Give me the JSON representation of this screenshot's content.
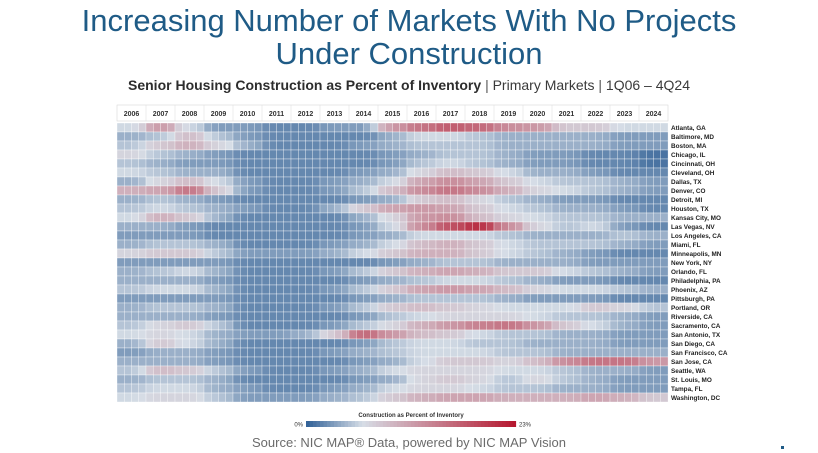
{
  "header": {
    "title_line1": "Increasing Number of Markets With No Projects",
    "title_line2": "Under Construction",
    "subtitle_bold": "Senior Housing Construction as Percent of Inventory",
    "subtitle_rest_1": "Primary Markets",
    "subtitle_rest_2": "1Q06 – 4Q24",
    "separator": "|"
  },
  "footer": {
    "source": "Source: NIC MAP® Data, powered by NIC MAP Vision"
  },
  "colors": {
    "low": "#2f5f95",
    "mid": "#d6dde6",
    "high": "#b5162d",
    "title": "#1f5b86"
  },
  "chart_data": {
    "type": "heatmap",
    "title": "Senior Housing Construction as Percent of Inventory",
    "x_tick_labels": [
      "2006",
      "2007",
      "2008",
      "2009",
      "2010",
      "2011",
      "2012",
      "2013",
      "2014",
      "2015",
      "2016",
      "2017",
      "2018",
      "2019",
      "2020",
      "2021",
      "2022",
      "2023",
      "2024"
    ],
    "y_categories": [
      "Atlanta, GA",
      "Baltimore, MD",
      "Boston, MA",
      "Chicago, IL",
      "Cincinnati, OH",
      "Cleveland, OH",
      "Dallas, TX",
      "Denver, CO",
      "Detroit, MI",
      "Houston, TX",
      "Kansas City, MO",
      "Las Vegas, NV",
      "Los Angeles, CA",
      "Miami, FL",
      "Minneapolis, MN",
      "New York, NY",
      "Orlando, FL",
      "Philadelphia, PA",
      "Phoenix, AZ",
      "Pittsburgh, PA",
      "Portland, OR",
      "Riverside, CA",
      "Sacramento, CA",
      "San Antonio, TX",
      "San Diego, CA",
      "San Francisco, CA",
      "San Jose, CA",
      "Seattle, WA",
      "St. Louis, MO",
      "Tampa, FL",
      "Washington, DC"
    ],
    "legend_title": "Construction as Percent of Inventory",
    "legend_min_label": "0%",
    "legend_max_label": "23%",
    "value_range": [
      0,
      23
    ],
    "yearly_values": [
      [
        6,
        12,
        6,
        3,
        3,
        2,
        2,
        3,
        3,
        12,
        15,
        17,
        16,
        13,
        12,
        8,
        8,
        6,
        6
      ],
      [
        4,
        5,
        9,
        5,
        3,
        2,
        2,
        2,
        2,
        4,
        6,
        6,
        5,
        4,
        4,
        4,
        4,
        3,
        3
      ],
      [
        5,
        8,
        10,
        7,
        4,
        2,
        2,
        2,
        3,
        4,
        5,
        5,
        5,
        4,
        4,
        4,
        4,
        3,
        3
      ],
      [
        7,
        5,
        4,
        3,
        2,
        2,
        2,
        2,
        2,
        3,
        4,
        5,
        5,
        4,
        3,
        3,
        2,
        2,
        1
      ],
      [
        5,
        4,
        3,
        3,
        2,
        2,
        2,
        2,
        2,
        3,
        5,
        6,
        5,
        4,
        3,
        3,
        2,
        2,
        1
      ],
      [
        6,
        5,
        4,
        4,
        2,
        2,
        2,
        2,
        3,
        4,
        7,
        9,
        8,
        6,
        4,
        4,
        3,
        2,
        2
      ],
      [
        4,
        7,
        9,
        6,
        3,
        2,
        2,
        3,
        4,
        6,
        11,
        13,
        11,
        8,
        6,
        5,
        5,
        4,
        3
      ],
      [
        10,
        11,
        15,
        8,
        3,
        2,
        2,
        3,
        5,
        9,
        13,
        15,
        13,
        10,
        7,
        6,
        5,
        4,
        3
      ],
      [
        4,
        5,
        4,
        3,
        2,
        2,
        2,
        2,
        3,
        4,
        8,
        9,
        7,
        5,
        4,
        3,
        3,
        2,
        2
      ],
      [
        5,
        6,
        5,
        4,
        3,
        2,
        2,
        4,
        8,
        11,
        12,
        11,
        8,
        6,
        5,
        4,
        4,
        3,
        2
      ],
      [
        6,
        10,
        8,
        4,
        2,
        2,
        2,
        2,
        4,
        7,
        12,
        13,
        9,
        7,
        6,
        5,
        5,
        4,
        4
      ],
      [
        4,
        4,
        3,
        2,
        2,
        2,
        2,
        2,
        3,
        6,
        13,
        18,
        21,
        13,
        7,
        5,
        6,
        3,
        2
      ],
      [
        3,
        3,
        3,
        2,
        2,
        2,
        2,
        2,
        3,
        4,
        6,
        6,
        6,
        5,
        4,
        4,
        4,
        5,
        4
      ],
      [
        4,
        5,
        5,
        4,
        2,
        2,
        2,
        3,
        4,
        6,
        9,
        10,
        8,
        6,
        5,
        5,
        5,
        4,
        3
      ],
      [
        7,
        8,
        8,
        5,
        3,
        3,
        3,
        4,
        6,
        8,
        10,
        10,
        8,
        6,
        5,
        4,
        3,
        2,
        2
      ],
      [
        3,
        3,
        3,
        3,
        2,
        2,
        2,
        2,
        2,
        3,
        4,
        5,
        5,
        4,
        4,
        4,
        3,
        3,
        3
      ],
      [
        4,
        5,
        6,
        4,
        2,
        2,
        2,
        3,
        5,
        8,
        10,
        11,
        10,
        8,
        8,
        6,
        5,
        4,
        3
      ],
      [
        4,
        4,
        4,
        3,
        2,
        2,
        2,
        2,
        3,
        4,
        5,
        6,
        6,
        5,
        4,
        3,
        3,
        2,
        2
      ],
      [
        5,
        6,
        6,
        4,
        2,
        2,
        2,
        3,
        5,
        8,
        11,
        12,
        11,
        9,
        7,
        6,
        6,
        5,
        4
      ],
      [
        3,
        3,
        3,
        3,
        2,
        2,
        2,
        2,
        3,
        4,
        5,
        5,
        5,
        4,
        3,
        3,
        3,
        2,
        2
      ],
      [
        4,
        5,
        5,
        4,
        2,
        2,
        2,
        3,
        5,
        8,
        9,
        8,
        7,
        6,
        6,
        6,
        8,
        7,
        5
      ],
      [
        4,
        4,
        4,
        3,
        2,
        2,
        2,
        2,
        3,
        5,
        6,
        7,
        7,
        7,
        6,
        5,
        5,
        4,
        3
      ],
      [
        5,
        7,
        8,
        5,
        2,
        2,
        2,
        3,
        5,
        7,
        10,
        12,
        14,
        15,
        12,
        8,
        6,
        4,
        3
      ],
      [
        6,
        7,
        6,
        4,
        3,
        3,
        4,
        8,
        16,
        12,
        9,
        8,
        6,
        5,
        5,
        4,
        4,
        3,
        3
      ],
      [
        4,
        8,
        6,
        4,
        2,
        2,
        2,
        2,
        3,
        5,
        6,
        6,
        5,
        5,
        4,
        4,
        4,
        3,
        3
      ],
      [
        3,
        4,
        4,
        3,
        2,
        2,
        2,
        3,
        4,
        5,
        6,
        6,
        6,
        5,
        5,
        4,
        4,
        4,
        4
      ],
      [
        4,
        4,
        4,
        3,
        2,
        2,
        2,
        2,
        3,
        4,
        6,
        8,
        8,
        7,
        9,
        13,
        15,
        15,
        12
      ],
      [
        5,
        9,
        8,
        5,
        3,
        2,
        2,
        3,
        4,
        6,
        7,
        7,
        7,
        6,
        6,
        5,
        4,
        4,
        3
      ],
      [
        4,
        5,
        5,
        4,
        2,
        2,
        2,
        2,
        3,
        4,
        7,
        8,
        7,
        5,
        7,
        5,
        4,
        3,
        3
      ],
      [
        5,
        6,
        6,
        4,
        3,
        2,
        2,
        3,
        4,
        6,
        7,
        7,
        6,
        5,
        5,
        4,
        4,
        3,
        3
      ],
      [
        6,
        7,
        7,
        5,
        3,
        3,
        3,
        4,
        5,
        8,
        10,
        11,
        11,
        10,
        10,
        10,
        11,
        10,
        8
      ]
    ]
  }
}
